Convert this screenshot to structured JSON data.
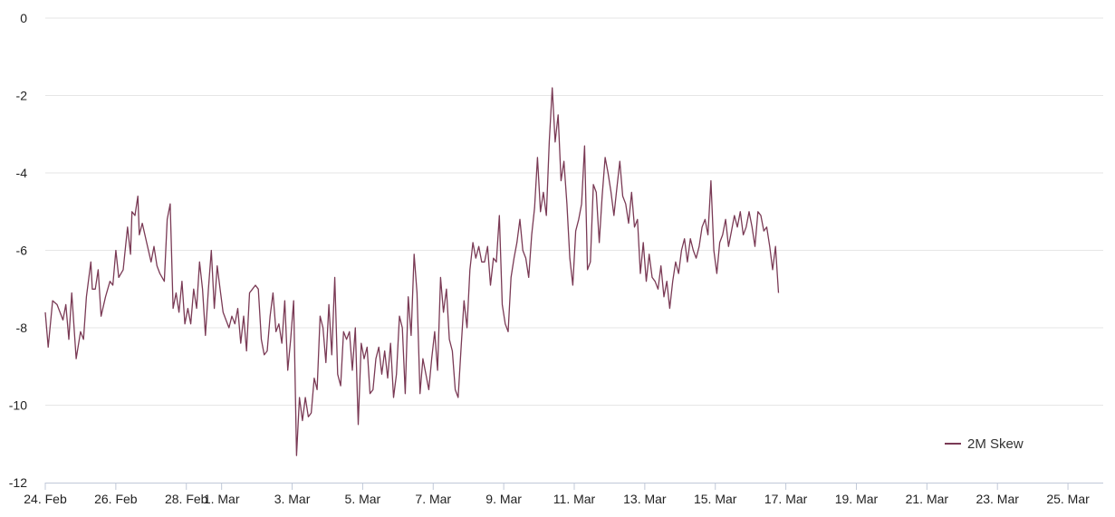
{
  "chart_data": {
    "type": "line",
    "title": "",
    "xlabel": "",
    "ylabel": "",
    "ylim": [
      -12,
      0
    ],
    "xlim": [
      "2021-02-24",
      "2021-03-26"
    ],
    "y_ticks": [
      "0",
      "-2",
      "-4",
      "-6",
      "-8",
      "-10",
      "-12"
    ],
    "x_ticks": [
      {
        "date": "2021-02-24",
        "label": "24. Feb"
      },
      {
        "date": "2021-02-26",
        "label": "26. Feb"
      },
      {
        "date": "2021-02-28",
        "label": "28. Feb"
      },
      {
        "date": "2021-03-01",
        "label": "1. Mar"
      },
      {
        "date": "2021-03-03",
        "label": "3. Mar"
      },
      {
        "date": "2021-03-05",
        "label": "5. Mar"
      },
      {
        "date": "2021-03-07",
        "label": "7. Mar"
      },
      {
        "date": "2021-03-09",
        "label": "9. Mar"
      },
      {
        "date": "2021-03-11",
        "label": "11. Mar"
      },
      {
        "date": "2021-03-13",
        "label": "13. Mar"
      },
      {
        "date": "2021-03-15",
        "label": "15. Mar"
      },
      {
        "date": "2021-03-17",
        "label": "17. Mar"
      },
      {
        "date": "2021-03-19",
        "label": "19. Mar"
      },
      {
        "date": "2021-03-21",
        "label": "21. Mar"
      },
      {
        "date": "2021-03-23",
        "label": "23. Mar"
      },
      {
        "date": "2021-03-25",
        "label": "25. Mar"
      }
    ],
    "grid": {
      "horizontal": true,
      "vertical": false
    },
    "legend_position": "bottom-right",
    "series": [
      {
        "name": "2M Skew",
        "color": "#7a3a55",
        "points": [
          [
            "2021-02-24T00:00",
            -7.6
          ],
          [
            "2021-02-24T02:00",
            -8.5
          ],
          [
            "2021-02-24T05:00",
            -7.3
          ],
          [
            "2021-02-24T08:00",
            -7.4
          ],
          [
            "2021-02-24T12:00",
            -7.8
          ],
          [
            "2021-02-24T14:00",
            -7.4
          ],
          [
            "2021-02-24T16:00",
            -8.3
          ],
          [
            "2021-02-24T18:00",
            -7.1
          ],
          [
            "2021-02-24T21:00",
            -8.8
          ],
          [
            "2021-02-25T00:00",
            -8.1
          ],
          [
            "2021-02-25T02:00",
            -8.3
          ],
          [
            "2021-02-25T04:00",
            -7.2
          ],
          [
            "2021-02-25T07:00",
            -6.3
          ],
          [
            "2021-02-25T08:00",
            -7.0
          ],
          [
            "2021-02-25T10:00",
            -7.0
          ],
          [
            "2021-02-25T12:00",
            -6.5
          ],
          [
            "2021-02-25T14:00",
            -7.7
          ],
          [
            "2021-02-25T17:00",
            -7.2
          ],
          [
            "2021-02-25T20:00",
            -6.8
          ],
          [
            "2021-02-25T22:00",
            -6.9
          ],
          [
            "2021-02-26T00:00",
            -6.0
          ],
          [
            "2021-02-26T02:00",
            -6.7
          ],
          [
            "2021-02-26T05:00",
            -6.5
          ],
          [
            "2021-02-26T08:00",
            -5.4
          ],
          [
            "2021-02-26T10:00",
            -6.1
          ],
          [
            "2021-02-26T11:00",
            -5.0
          ],
          [
            "2021-02-26T13:00",
            -5.1
          ],
          [
            "2021-02-26T15:00",
            -4.6
          ],
          [
            "2021-02-26T16:00",
            -5.6
          ],
          [
            "2021-02-26T18:00",
            -5.3
          ],
          [
            "2021-02-26T21:00",
            -5.8
          ],
          [
            "2021-02-27T00:00",
            -6.3
          ],
          [
            "2021-02-27T02:00",
            -5.9
          ],
          [
            "2021-02-27T04:00",
            -6.4
          ],
          [
            "2021-02-27T06:00",
            -6.6
          ],
          [
            "2021-02-27T09:00",
            -6.8
          ],
          [
            "2021-02-27T11:00",
            -5.2
          ],
          [
            "2021-02-27T13:00",
            -4.8
          ],
          [
            "2021-02-27T15:00",
            -7.5
          ],
          [
            "2021-02-27T17:00",
            -7.1
          ],
          [
            "2021-02-27T19:00",
            -7.6
          ],
          [
            "2021-02-27T21:00",
            -6.8
          ],
          [
            "2021-02-27T23:00",
            -7.9
          ],
          [
            "2021-02-28T01:00",
            -7.5
          ],
          [
            "2021-02-28T03:00",
            -7.9
          ],
          [
            "2021-02-28T05:00",
            -7.0
          ],
          [
            "2021-02-28T07:00",
            -7.5
          ],
          [
            "2021-02-28T09:00",
            -6.3
          ],
          [
            "2021-02-28T11:00",
            -7.0
          ],
          [
            "2021-02-28T13:00",
            -8.2
          ],
          [
            "2021-02-28T15:00",
            -7.0
          ],
          [
            "2021-02-28T17:00",
            -6.0
          ],
          [
            "2021-02-28T19:00",
            -7.5
          ],
          [
            "2021-02-28T21:00",
            -6.4
          ],
          [
            "2021-02-28T23:00",
            -7.0
          ],
          [
            "2021-03-01T01:00",
            -7.6
          ],
          [
            "2021-03-01T03:00",
            -7.8
          ],
          [
            "2021-03-01T05:00",
            -8.0
          ],
          [
            "2021-03-01T07:00",
            -7.7
          ],
          [
            "2021-03-01T09:00",
            -7.9
          ],
          [
            "2021-03-01T11:00",
            -7.5
          ],
          [
            "2021-03-01T13:00",
            -8.4
          ],
          [
            "2021-03-01T15:00",
            -7.7
          ],
          [
            "2021-03-01T17:00",
            -8.6
          ],
          [
            "2021-03-01T19:00",
            -7.1
          ],
          [
            "2021-03-01T21:00",
            -7.0
          ],
          [
            "2021-03-01T23:00",
            -6.9
          ],
          [
            "2021-03-02T01:00",
            -7.0
          ],
          [
            "2021-03-02T03:00",
            -8.3
          ],
          [
            "2021-03-02T05:00",
            -8.7
          ],
          [
            "2021-03-02T07:00",
            -8.6
          ],
          [
            "2021-03-02T09:00",
            -7.7
          ],
          [
            "2021-03-02T11:00",
            -7.1
          ],
          [
            "2021-03-02T13:00",
            -8.1
          ],
          [
            "2021-03-02T15:00",
            -7.9
          ],
          [
            "2021-03-02T17:00",
            -8.4
          ],
          [
            "2021-03-02T19:00",
            -7.3
          ],
          [
            "2021-03-02T21:00",
            -9.1
          ],
          [
            "2021-03-02T23:00",
            -8.3
          ],
          [
            "2021-03-03T01:00",
            -7.3
          ],
          [
            "2021-03-03T03:00",
            -11.3
          ],
          [
            "2021-03-03T05:00",
            -9.8
          ],
          [
            "2021-03-03T07:00",
            -10.4
          ],
          [
            "2021-03-03T09:00",
            -9.8
          ],
          [
            "2021-03-03T11:00",
            -10.3
          ],
          [
            "2021-03-03T13:00",
            -10.2
          ],
          [
            "2021-03-03T15:00",
            -9.3
          ],
          [
            "2021-03-03T17:00",
            -9.6
          ],
          [
            "2021-03-03T19:00",
            -7.7
          ],
          [
            "2021-03-03T21:00",
            -8.0
          ],
          [
            "2021-03-03T23:00",
            -8.9
          ],
          [
            "2021-03-04T01:00",
            -7.4
          ],
          [
            "2021-03-04T03:00",
            -8.7
          ],
          [
            "2021-03-04T05:00",
            -6.7
          ],
          [
            "2021-03-04T07:00",
            -9.2
          ],
          [
            "2021-03-04T09:00",
            -9.5
          ],
          [
            "2021-03-04T11:00",
            -8.1
          ],
          [
            "2021-03-04T13:00",
            -8.3
          ],
          [
            "2021-03-04T15:00",
            -8.1
          ],
          [
            "2021-03-04T17:00",
            -9.1
          ],
          [
            "2021-03-04T19:00",
            -8.0
          ],
          [
            "2021-03-04T21:00",
            -10.5
          ],
          [
            "2021-03-04T23:00",
            -8.4
          ],
          [
            "2021-03-05T01:00",
            -8.8
          ],
          [
            "2021-03-05T03:00",
            -8.5
          ],
          [
            "2021-03-05T05:00",
            -9.7
          ],
          [
            "2021-03-05T07:00",
            -9.6
          ],
          [
            "2021-03-05T09:00",
            -8.8
          ],
          [
            "2021-03-05T11:00",
            -8.5
          ],
          [
            "2021-03-05T13:00",
            -9.2
          ],
          [
            "2021-03-05T15:00",
            -8.6
          ],
          [
            "2021-03-05T17:00",
            -9.3
          ],
          [
            "2021-03-05T19:00",
            -8.4
          ],
          [
            "2021-03-05T21:00",
            -9.8
          ],
          [
            "2021-03-05T23:00",
            -9.2
          ],
          [
            "2021-03-06T01:00",
            -7.7
          ],
          [
            "2021-03-06T03:00",
            -8.0
          ],
          [
            "2021-03-06T05:00",
            -9.7
          ],
          [
            "2021-03-06T07:00",
            -7.2
          ],
          [
            "2021-03-06T09:00",
            -8.2
          ],
          [
            "2021-03-06T11:00",
            -6.1
          ],
          [
            "2021-03-06T13:00",
            -7.1
          ],
          [
            "2021-03-06T15:00",
            -9.7
          ],
          [
            "2021-03-06T17:00",
            -8.8
          ],
          [
            "2021-03-06T19:00",
            -9.2
          ],
          [
            "2021-03-06T21:00",
            -9.6
          ],
          [
            "2021-03-06T23:00",
            -8.8
          ],
          [
            "2021-03-07T01:00",
            -8.1
          ],
          [
            "2021-03-07T03:00",
            -9.1
          ],
          [
            "2021-03-07T05:00",
            -6.7
          ],
          [
            "2021-03-07T07:00",
            -7.6
          ],
          [
            "2021-03-07T09:00",
            -7.0
          ],
          [
            "2021-03-07T11:00",
            -8.3
          ],
          [
            "2021-03-07T13:00",
            -8.6
          ],
          [
            "2021-03-07T15:00",
            -9.6
          ],
          [
            "2021-03-07T17:00",
            -9.8
          ],
          [
            "2021-03-07T19:00",
            -8.5
          ],
          [
            "2021-03-07T21:00",
            -7.3
          ],
          [
            "2021-03-07T23:00",
            -8.0
          ],
          [
            "2021-03-08T01:00",
            -6.5
          ],
          [
            "2021-03-08T03:00",
            -5.8
          ],
          [
            "2021-03-08T05:00",
            -6.2
          ],
          [
            "2021-03-08T07:00",
            -5.9
          ],
          [
            "2021-03-08T09:00",
            -6.3
          ],
          [
            "2021-03-08T11:00",
            -6.3
          ],
          [
            "2021-03-08T13:00",
            -5.9
          ],
          [
            "2021-03-08T15:00",
            -6.9
          ],
          [
            "2021-03-08T17:00",
            -6.2
          ],
          [
            "2021-03-08T19:00",
            -6.3
          ],
          [
            "2021-03-08T21:00",
            -5.1
          ],
          [
            "2021-03-08T23:00",
            -7.4
          ],
          [
            "2021-03-09T01:00",
            -7.9
          ],
          [
            "2021-03-09T03:00",
            -8.1
          ],
          [
            "2021-03-09T05:00",
            -6.7
          ],
          [
            "2021-03-09T07:00",
            -6.2
          ],
          [
            "2021-03-09T09:00",
            -5.8
          ],
          [
            "2021-03-09T11:00",
            -5.2
          ],
          [
            "2021-03-09T13:00",
            -6.0
          ],
          [
            "2021-03-09T15:00",
            -6.2
          ],
          [
            "2021-03-09T17:00",
            -6.7
          ],
          [
            "2021-03-09T19:00",
            -5.6
          ],
          [
            "2021-03-09T21:00",
            -4.9
          ],
          [
            "2021-03-09T23:00",
            -3.6
          ],
          [
            "2021-03-10T01:00",
            -5.0
          ],
          [
            "2021-03-10T03:00",
            -4.5
          ],
          [
            "2021-03-10T05:00",
            -5.1
          ],
          [
            "2021-03-10T07:00",
            -3.2
          ],
          [
            "2021-03-10T09:00",
            -1.8
          ],
          [
            "2021-03-10T11:00",
            -3.2
          ],
          [
            "2021-03-10T13:00",
            -2.5
          ],
          [
            "2021-03-10T15:00",
            -4.2
          ],
          [
            "2021-03-10T17:00",
            -3.7
          ],
          [
            "2021-03-10T19:00",
            -4.8
          ],
          [
            "2021-03-10T21:00",
            -6.2
          ],
          [
            "2021-03-10T23:00",
            -6.9
          ],
          [
            "2021-03-11T01:00",
            -5.5
          ],
          [
            "2021-03-11T03:00",
            -5.2
          ],
          [
            "2021-03-11T05:00",
            -4.8
          ],
          [
            "2021-03-11T07:00",
            -3.3
          ],
          [
            "2021-03-11T09:00",
            -6.5
          ],
          [
            "2021-03-11T11:00",
            -6.3
          ],
          [
            "2021-03-11T13:00",
            -4.3
          ],
          [
            "2021-03-11T15:00",
            -4.5
          ],
          [
            "2021-03-11T17:00",
            -5.8
          ],
          [
            "2021-03-11T19:00",
            -4.6
          ],
          [
            "2021-03-11T21:00",
            -3.6
          ],
          [
            "2021-03-11T23:00",
            -4.0
          ],
          [
            "2021-03-12T01:00",
            -4.5
          ],
          [
            "2021-03-12T03:00",
            -5.1
          ],
          [
            "2021-03-12T05:00",
            -4.4
          ],
          [
            "2021-03-12T07:00",
            -3.7
          ],
          [
            "2021-03-12T09:00",
            -4.6
          ],
          [
            "2021-03-12T11:00",
            -4.8
          ],
          [
            "2021-03-12T13:00",
            -5.3
          ],
          [
            "2021-03-12T15:00",
            -4.5
          ],
          [
            "2021-03-12T17:00",
            -5.4
          ],
          [
            "2021-03-12T19:00",
            -5.2
          ],
          [
            "2021-03-12T21:00",
            -6.6
          ],
          [
            "2021-03-12T23:00",
            -5.8
          ],
          [
            "2021-03-13T01:00",
            -6.8
          ],
          [
            "2021-03-13T03:00",
            -6.1
          ],
          [
            "2021-03-13T05:00",
            -6.7
          ],
          [
            "2021-03-13T07:00",
            -6.8
          ],
          [
            "2021-03-13T09:00",
            -7.0
          ],
          [
            "2021-03-13T11:00",
            -6.4
          ],
          [
            "2021-03-13T13:00",
            -7.2
          ],
          [
            "2021-03-13T15:00",
            -6.8
          ],
          [
            "2021-03-13T17:00",
            -7.5
          ],
          [
            "2021-03-13T19:00",
            -6.8
          ],
          [
            "2021-03-13T21:00",
            -6.3
          ],
          [
            "2021-03-13T23:00",
            -6.6
          ],
          [
            "2021-03-14T01:00",
            -6.0
          ],
          [
            "2021-03-14T03:00",
            -5.7
          ],
          [
            "2021-03-14T05:00",
            -6.3
          ],
          [
            "2021-03-14T07:00",
            -5.7
          ],
          [
            "2021-03-14T09:00",
            -6.0
          ],
          [
            "2021-03-14T11:00",
            -6.2
          ],
          [
            "2021-03-14T13:00",
            -5.9
          ],
          [
            "2021-03-14T15:00",
            -5.4
          ],
          [
            "2021-03-14T17:00",
            -5.2
          ],
          [
            "2021-03-14T19:00",
            -5.6
          ],
          [
            "2021-03-14T21:00",
            -4.2
          ],
          [
            "2021-03-14T23:00",
            -6.0
          ],
          [
            "2021-03-15T01:00",
            -6.6
          ],
          [
            "2021-03-15T03:00",
            -5.8
          ],
          [
            "2021-03-15T05:00",
            -5.6
          ],
          [
            "2021-03-15T07:00",
            -5.2
          ],
          [
            "2021-03-15T09:00",
            -5.9
          ],
          [
            "2021-03-15T11:00",
            -5.5
          ],
          [
            "2021-03-15T13:00",
            -5.1
          ],
          [
            "2021-03-15T15:00",
            -5.4
          ],
          [
            "2021-03-15T17:00",
            -5.0
          ],
          [
            "2021-03-15T19:00",
            -5.6
          ],
          [
            "2021-03-15T21:00",
            -5.4
          ],
          [
            "2021-03-15T23:00",
            -5.0
          ],
          [
            "2021-03-16T01:00",
            -5.4
          ],
          [
            "2021-03-16T03:00",
            -5.9
          ],
          [
            "2021-03-16T05:00",
            -5.0
          ],
          [
            "2021-03-16T07:00",
            -5.1
          ],
          [
            "2021-03-16T09:00",
            -5.5
          ],
          [
            "2021-03-16T11:00",
            -5.4
          ],
          [
            "2021-03-16T13:00",
            -5.9
          ],
          [
            "2021-03-16T15:00",
            -6.5
          ],
          [
            "2021-03-16T17:00",
            -5.9
          ],
          [
            "2021-03-16T19:00",
            -7.1
          ]
        ]
      }
    ]
  }
}
